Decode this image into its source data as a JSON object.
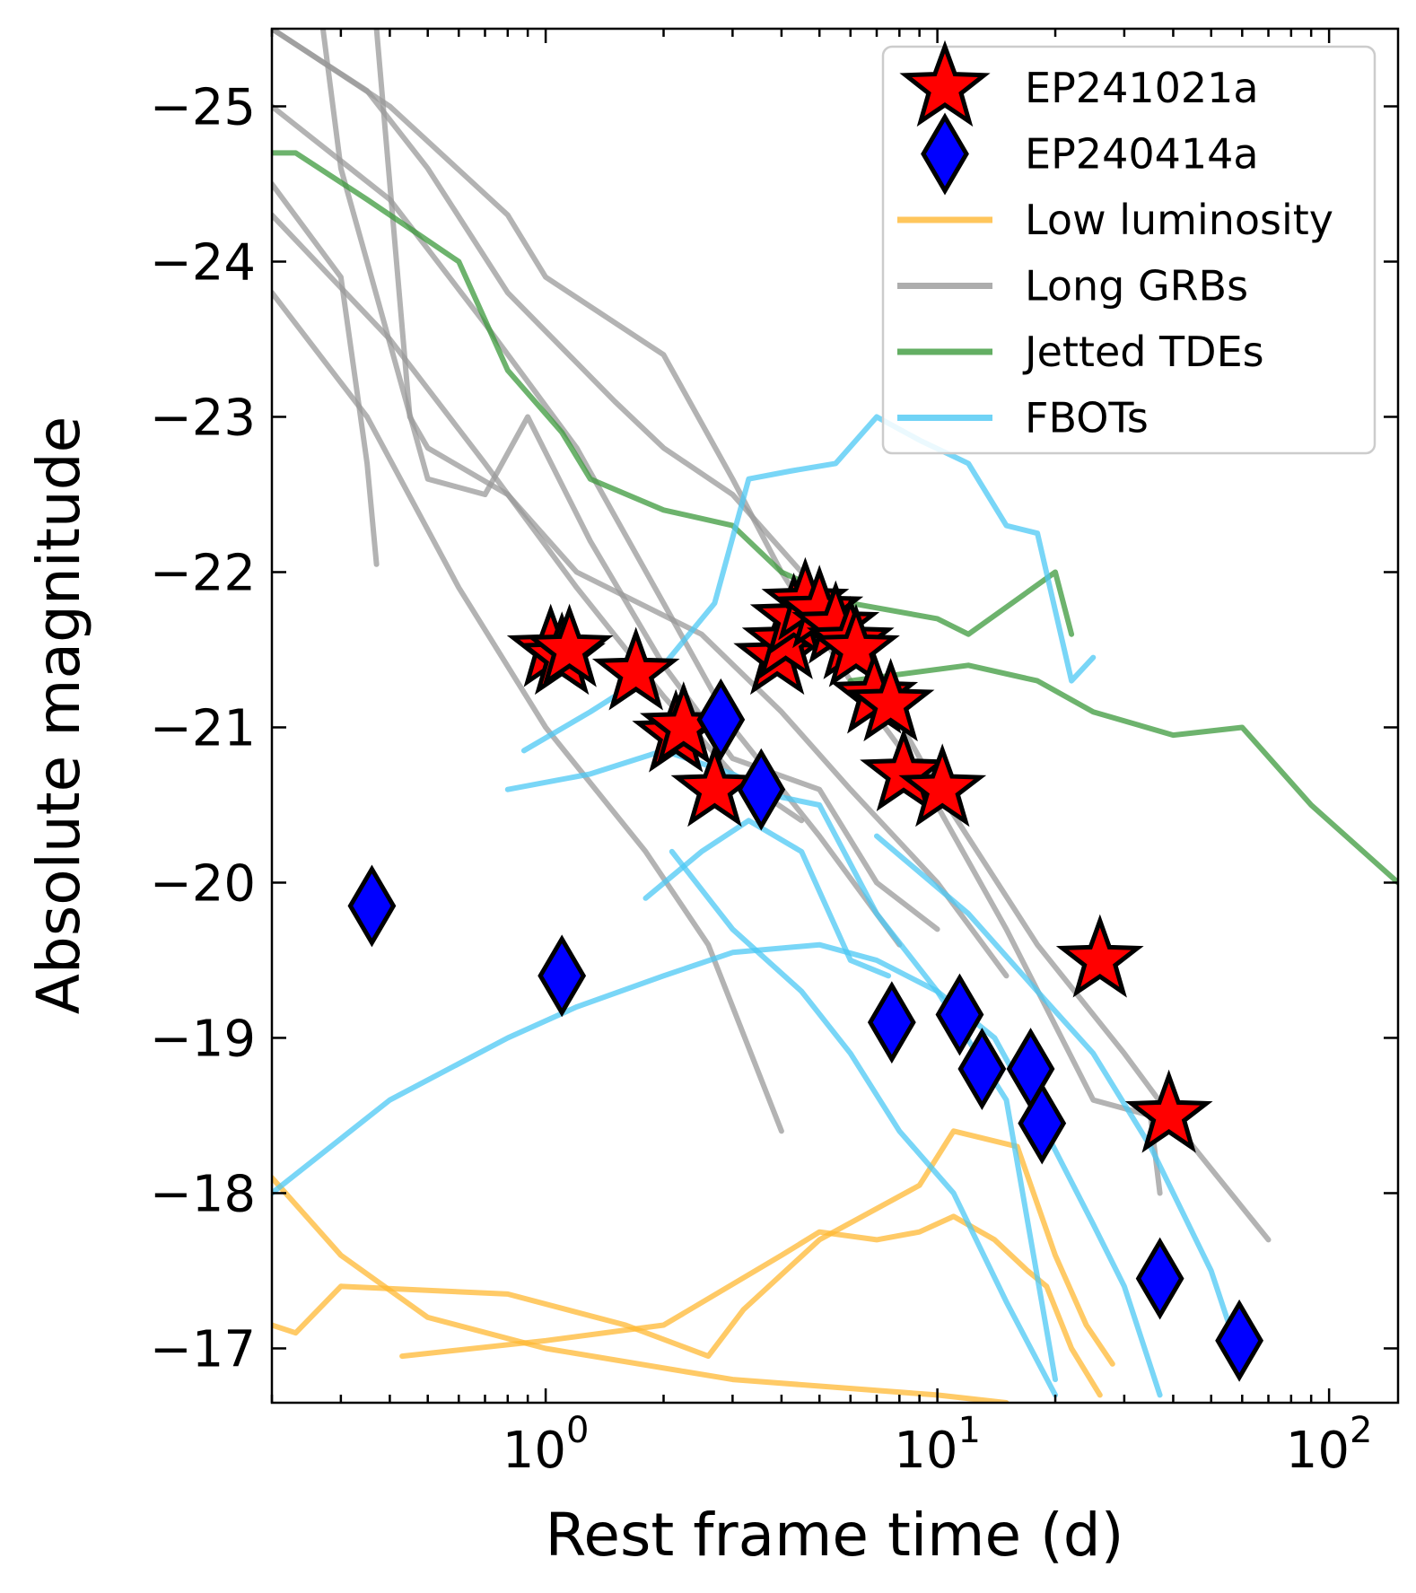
{
  "chart_data": {
    "type": "scatter",
    "xlabel": "Rest frame time (d)",
    "ylabel": "Absolute magnitude",
    "xscale": "log",
    "xlim": [
      0.2,
      150
    ],
    "ylim": [
      -16.65,
      -25.5
    ],
    "y_inverted": true,
    "x_ticks": [
      {
        "value": 1,
        "base": "10",
        "exp": "0"
      },
      {
        "value": 10,
        "base": "10",
        "exp": "1"
      },
      {
        "value": 100,
        "base": "10",
        "exp": "2"
      }
    ],
    "y_ticks": [
      {
        "value": -25,
        "label": "−25"
      },
      {
        "value": -24,
        "label": "−24"
      },
      {
        "value": -23,
        "label": "−23"
      },
      {
        "value": -22,
        "label": "−22"
      },
      {
        "value": -21,
        "label": "−21"
      },
      {
        "value": -20,
        "label": "−20"
      },
      {
        "value": -19,
        "label": "−19"
      },
      {
        "value": -18,
        "label": "−18"
      },
      {
        "value": -17,
        "label": "−17"
      }
    ],
    "grid": false,
    "legend_position": "top-right",
    "legend": [
      {
        "label": "EP241021a",
        "marker": "star",
        "color": "#ff0000"
      },
      {
        "label": "EP240414a",
        "marker": "diamond",
        "color": "#0000ff"
      },
      {
        "label": "Low luminosity",
        "marker": "line",
        "color": "#ffb833"
      },
      {
        "label": "Long GRBs",
        "marker": "line",
        "color": "#999999"
      },
      {
        "label": "Jetted TDEs",
        "marker": "line",
        "color": "#3c9a3c"
      },
      {
        "label": "FBOTs",
        "marker": "line",
        "color": "#4cc8f4"
      }
    ],
    "series": [
      {
        "name": "EP241021a",
        "kind": "points",
        "marker": "star",
        "color": "#ff0000",
        "points": [
          [
            1.03,
            -21.5
          ],
          [
            1.1,
            -21.45
          ],
          [
            1.15,
            -21.5
          ],
          [
            1.7,
            -21.35
          ],
          [
            2.15,
            -20.95
          ],
          [
            2.25,
            -21.0
          ],
          [
            2.7,
            -20.6
          ],
          [
            3.9,
            -21.45
          ],
          [
            4.1,
            -21.55
          ],
          [
            4.3,
            -21.7
          ],
          [
            4.6,
            -21.8
          ],
          [
            5.0,
            -21.75
          ],
          [
            5.5,
            -21.65
          ],
          [
            6.0,
            -21.55
          ],
          [
            6.2,
            -21.5
          ],
          [
            6.9,
            -21.2
          ],
          [
            7.6,
            -21.15
          ],
          [
            8.2,
            -20.7
          ],
          [
            10.3,
            -20.6
          ],
          [
            26.0,
            -19.5
          ],
          [
            39.0,
            -18.5
          ]
        ]
      },
      {
        "name": "EP240414a",
        "kind": "points",
        "marker": "diamond",
        "color": "#0000ff",
        "points": [
          [
            0.36,
            -19.85
          ],
          [
            1.1,
            -19.4
          ],
          [
            2.8,
            -21.05
          ],
          [
            3.55,
            -20.6
          ],
          [
            7.65,
            -19.1
          ],
          [
            11.4,
            -19.15
          ],
          [
            13.0,
            -18.8
          ],
          [
            17.3,
            -18.8
          ],
          [
            18.5,
            -18.45
          ],
          [
            37.0,
            -17.45
          ],
          [
            59.0,
            -17.05
          ]
        ]
      },
      {
        "name": "Low luminosity",
        "kind": "lines",
        "color": "#ffb833",
        "lines": [
          [
            [
              0.2,
              -18.1
            ],
            [
              0.3,
              -17.6
            ],
            [
              0.5,
              -17.2
            ],
            [
              1.0,
              -17.0
            ],
            [
              3.0,
              -16.8
            ],
            [
              10.0,
              -16.7
            ],
            [
              15.0,
              -16.65
            ]
          ],
          [
            [
              0.2,
              -17.15
            ],
            [
              0.23,
              -17.1
            ],
            [
              0.3,
              -17.4
            ],
            [
              0.8,
              -17.35
            ],
            [
              1.6,
              -17.15
            ],
            [
              2.6,
              -16.95
            ],
            [
              3.2,
              -17.25
            ],
            [
              5.0,
              -17.7
            ],
            [
              9.0,
              -18.05
            ],
            [
              11.0,
              -18.4
            ],
            [
              16.0,
              -18.3
            ],
            [
              20.0,
              -17.6
            ],
            [
              24.0,
              -17.15
            ],
            [
              28.0,
              -16.9
            ]
          ],
          [
            [
              0.43,
              -16.95
            ],
            [
              1.0,
              -17.05
            ],
            [
              2.0,
              -17.15
            ],
            [
              4.0,
              -17.6
            ],
            [
              5.0,
              -17.75
            ],
            [
              7.0,
              -17.7
            ],
            [
              9.0,
              -17.75
            ],
            [
              11.0,
              -17.85
            ],
            [
              14.0,
              -17.7
            ],
            [
              17.0,
              -17.5
            ],
            [
              19.0,
              -17.4
            ],
            [
              22.0,
              -17.0
            ],
            [
              26.0,
              -16.7
            ]
          ]
        ]
      },
      {
        "name": "Long GRBs",
        "kind": "lines",
        "color": "#999999",
        "lines": [
          [
            [
              0.2,
              -25.5
            ],
            [
              0.35,
              -25.1
            ],
            [
              0.5,
              -24.6
            ],
            [
              0.8,
              -23.8
            ],
            [
              1.5,
              -23.1
            ],
            [
              2.0,
              -22.8
            ],
            [
              3.0,
              -22.5
            ],
            [
              4.5,
              -22.0
            ],
            [
              6.0,
              -21.6
            ],
            [
              10.0,
              -20.6
            ],
            [
              18.0,
              -19.6
            ],
            [
              30.0,
              -18.9
            ],
            [
              45.0,
              -18.3
            ],
            [
              70.0,
              -17.7
            ]
          ],
          [
            [
              0.2,
              -25.0
            ],
            [
              0.4,
              -24.4
            ],
            [
              0.7,
              -23.6
            ],
            [
              1.2,
              -22.8
            ],
            [
              2.0,
              -21.8
            ],
            [
              3.0,
              -21.0
            ],
            [
              5.0,
              -20.3
            ],
            [
              8.0,
              -19.6
            ]
          ],
          [
            [
              0.2,
              -24.3
            ],
            [
              0.4,
              -23.5
            ],
            [
              0.7,
              -22.7
            ],
            [
              1.2,
              -21.9
            ],
            [
              2.0,
              -21.2
            ],
            [
              3.0,
              -20.7
            ],
            [
              4.5,
              -20.4
            ]
          ],
          [
            [
              0.2,
              -23.8
            ],
            [
              0.35,
              -23.0
            ],
            [
              0.6,
              -21.9
            ],
            [
              1.0,
              -21.0
            ],
            [
              1.8,
              -20.2
            ],
            [
              2.6,
              -19.6
            ],
            [
              4.0,
              -18.4
            ]
          ],
          [
            [
              0.37,
              -25.5
            ],
            [
              0.45,
              -23.0
            ],
            [
              0.5,
              -22.8
            ],
            [
              0.8,
              -22.5
            ],
            [
              1.2,
              -22.0
            ],
            [
              2.5,
              -21.6
            ],
            [
              4.0,
              -21.1
            ],
            [
              6.0,
              -20.6
            ],
            [
              10.0,
              -20.0
            ],
            [
              15.0,
              -19.4
            ]
          ],
          [
            [
              0.2,
              -24.5
            ],
            [
              0.3,
              -23.9
            ],
            [
              0.35,
              -22.7
            ],
            [
              0.37,
              -22.05
            ]
          ],
          [
            [
              0.27,
              -25.5
            ],
            [
              0.3,
              -24.6
            ],
            [
              0.35,
              -24.0
            ],
            [
              0.5,
              -22.6
            ],
            [
              0.7,
              -22.5
            ],
            [
              0.9,
              -23.0
            ],
            [
              1.3,
              -22.2
            ],
            [
              2.0,
              -21.4
            ],
            [
              3.0,
              -20.8
            ],
            [
              5.0,
              -20.6
            ],
            [
              7.0,
              -20.0
            ],
            [
              10.0,
              -19.7
            ]
          ],
          [
            [
              0.2,
              -25.5
            ],
            [
              0.4,
              -25.0
            ],
            [
              0.8,
              -24.3
            ],
            [
              1.0,
              -23.9
            ],
            [
              2.0,
              -23.4
            ],
            [
              3.0,
              -22.6
            ],
            [
              4.0,
              -22.0
            ],
            [
              6.0,
              -21.3
            ],
            [
              9.0,
              -20.7
            ],
            [
              15.0,
              -19.7
            ],
            [
              25.0,
              -18.6
            ],
            [
              35.0,
              -18.5
            ],
            [
              37.0,
              -18.0
            ]
          ]
        ]
      },
      {
        "name": "Jetted TDEs",
        "kind": "lines",
        "color": "#3c9a3c",
        "lines": [
          [
            [
              0.2,
              -24.7
            ],
            [
              0.23,
              -24.7
            ],
            [
              0.35,
              -24.4
            ],
            [
              0.6,
              -24.0
            ],
            [
              0.8,
              -23.3
            ],
            [
              1.1,
              -22.9
            ],
            [
              1.3,
              -22.6
            ],
            [
              2.0,
              -22.4
            ],
            [
              3.0,
              -22.3
            ],
            [
              4.0,
              -22.0
            ],
            [
              6.0,
              -21.8
            ],
            [
              10.0,
              -21.7
            ],
            [
              12.0,
              -21.6
            ],
            [
              20.0,
              -22.0
            ],
            [
              22.0,
              -21.6
            ]
          ],
          [
            [
              6.0,
              -21.3
            ],
            [
              12.0,
              -21.4
            ],
            [
              18.0,
              -21.3
            ],
            [
              25.0,
              -21.1
            ],
            [
              40.0,
              -20.95
            ],
            [
              60.0,
              -21.0
            ],
            [
              90.0,
              -20.5
            ],
            [
              150.0,
              -20.0
            ]
          ]
        ]
      },
      {
        "name": "FBOTs",
        "kind": "lines",
        "color": "#4cc8f4",
        "lines": [
          [
            [
              0.2,
              -18.0
            ],
            [
              0.4,
              -18.6
            ],
            [
              0.8,
              -19.0
            ],
            [
              1.2,
              -19.2
            ],
            [
              2.0,
              -19.4
            ],
            [
              3.0,
              -19.55
            ],
            [
              5.0,
              -19.6
            ],
            [
              7.0,
              -19.5
            ],
            [
              10.0,
              -19.3
            ],
            [
              14.0,
              -19.0
            ],
            [
              18.0,
              -18.5
            ],
            [
              25.0,
              -17.8
            ],
            [
              30.0,
              -17.4
            ],
            [
              37.0,
              -16.7
            ]
          ],
          [
            [
              0.88,
              -20.85
            ],
            [
              1.3,
              -21.1
            ],
            [
              2.0,
              -21.4
            ],
            [
              2.7,
              -21.8
            ],
            [
              3.3,
              -22.6
            ],
            [
              4.2,
              -22.65
            ],
            [
              5.5,
              -22.7
            ],
            [
              7.0,
              -23.0
            ],
            [
              9.0,
              -22.85
            ],
            [
              12.0,
              -22.7
            ],
            [
              15.0,
              -22.3
            ],
            [
              18.0,
              -22.25
            ],
            [
              22.0,
              -21.3
            ],
            [
              25.0,
              -21.45
            ]
          ],
          [
            [
              0.8,
              -20.6
            ],
            [
              1.3,
              -20.7
            ],
            [
              2.0,
              -20.85
            ],
            [
              3.0,
              -20.7
            ],
            [
              4.0,
              -20.55
            ],
            [
              5.0,
              -20.5
            ],
            [
              7.0,
              -19.8
            ],
            [
              10.0,
              -19.3
            ],
            [
              15.0,
              -18.6
            ],
            [
              20.0,
              -16.8
            ]
          ],
          [
            [
              1.8,
              -19.9
            ],
            [
              2.5,
              -20.2
            ],
            [
              3.3,
              -20.4
            ],
            [
              4.5,
              -20.2
            ],
            [
              6.0,
              -19.5
            ],
            [
              7.5,
              -19.4
            ]
          ],
          [
            [
              2.1,
              -20.2
            ],
            [
              3.0,
              -19.7
            ],
            [
              4.5,
              -19.3
            ],
            [
              6.0,
              -18.9
            ],
            [
              8.0,
              -18.4
            ],
            [
              11.0,
              -18.0
            ],
            [
              15.0,
              -17.3
            ],
            [
              20.0,
              -16.7
            ]
          ],
          [
            [
              7.0,
              -20.3
            ],
            [
              12.0,
              -19.8
            ],
            [
              18.0,
              -19.3
            ],
            [
              25.0,
              -18.9
            ],
            [
              35.0,
              -18.3
            ],
            [
              50.0,
              -17.5
            ],
            [
              60.0,
              -16.9
            ]
          ]
        ]
      }
    ]
  }
}
